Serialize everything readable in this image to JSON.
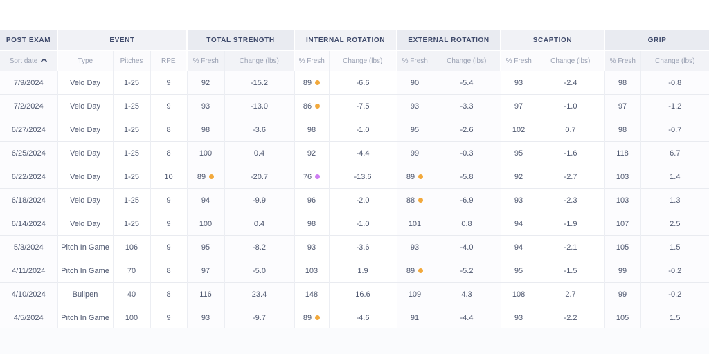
{
  "colors": {
    "dot_orange": "#F2A93C",
    "dot_purple": "#CE7EF2",
    "header_text": "#3F4A6B"
  },
  "table": {
    "sort": {
      "column": "Sort date",
      "direction": "ascending"
    },
    "groups": [
      {
        "label": "POST EXAM",
        "tone": "gray",
        "columns": [
          {
            "label": "Sort date"
          }
        ]
      },
      {
        "label": "EVENT",
        "tone": "light",
        "columns": [
          {
            "label": "Type"
          },
          {
            "label": "Pitches"
          },
          {
            "label": "RPE"
          }
        ]
      },
      {
        "label": "TOTAL STRENGTH",
        "tone": "gray",
        "columns": [
          {
            "label": "% Fresh"
          },
          {
            "label": "Change (lbs)"
          }
        ]
      },
      {
        "label": "INTERNAL ROTATION",
        "tone": "light",
        "columns": [
          {
            "label": "% Fresh"
          },
          {
            "label": "Change (lbs)"
          }
        ]
      },
      {
        "label": "EXTERNAL ROTATION",
        "tone": "gray",
        "columns": [
          {
            "label": "% Fresh"
          },
          {
            "label": "Change (lbs)"
          }
        ]
      },
      {
        "label": "SCAPTION",
        "tone": "light",
        "columns": [
          {
            "label": "% Fresh"
          },
          {
            "label": "Change (lbs)"
          }
        ]
      },
      {
        "label": "GRIP",
        "tone": "gray",
        "columns": [
          {
            "label": "% Fresh"
          },
          {
            "label": "Change (lbs)"
          }
        ]
      }
    ],
    "rows": [
      {
        "date": "7/9/2024",
        "type": "Velo Day",
        "pitches": "1-25",
        "rpe": "9",
        "total_strength": {
          "fresh": "92",
          "change": "-15.2",
          "dot": null
        },
        "internal_rotation": {
          "fresh": "89",
          "change": "-6.6",
          "dot": "orange"
        },
        "external_rotation": {
          "fresh": "90",
          "change": "-5.4",
          "dot": null
        },
        "scaption": {
          "fresh": "93",
          "change": "-2.4",
          "dot": null
        },
        "grip": {
          "fresh": "98",
          "change": "-0.8",
          "dot": null
        }
      },
      {
        "date": "7/2/2024",
        "type": "Velo Day",
        "pitches": "1-25",
        "rpe": "9",
        "total_strength": {
          "fresh": "93",
          "change": "-13.0",
          "dot": null
        },
        "internal_rotation": {
          "fresh": "86",
          "change": "-7.5",
          "dot": "orange"
        },
        "external_rotation": {
          "fresh": "93",
          "change": "-3.3",
          "dot": null
        },
        "scaption": {
          "fresh": "97",
          "change": "-1.0",
          "dot": null
        },
        "grip": {
          "fresh": "97",
          "change": "-1.2",
          "dot": null
        }
      },
      {
        "date": "6/27/2024",
        "type": "Velo Day",
        "pitches": "1-25",
        "rpe": "8",
        "total_strength": {
          "fresh": "98",
          "change": "-3.6",
          "dot": null
        },
        "internal_rotation": {
          "fresh": "98",
          "change": "-1.0",
          "dot": null
        },
        "external_rotation": {
          "fresh": "95",
          "change": "-2.6",
          "dot": null
        },
        "scaption": {
          "fresh": "102",
          "change": "0.7",
          "dot": null
        },
        "grip": {
          "fresh": "98",
          "change": "-0.7",
          "dot": null
        }
      },
      {
        "date": "6/25/2024",
        "type": "Velo Day",
        "pitches": "1-25",
        "rpe": "8",
        "total_strength": {
          "fresh": "100",
          "change": "0.4",
          "dot": null
        },
        "internal_rotation": {
          "fresh": "92",
          "change": "-4.4",
          "dot": null
        },
        "external_rotation": {
          "fresh": "99",
          "change": "-0.3",
          "dot": null
        },
        "scaption": {
          "fresh": "95",
          "change": "-1.6",
          "dot": null
        },
        "grip": {
          "fresh": "118",
          "change": "6.7",
          "dot": null
        }
      },
      {
        "date": "6/22/2024",
        "type": "Velo Day",
        "pitches": "1-25",
        "rpe": "10",
        "total_strength": {
          "fresh": "89",
          "change": "-20.7",
          "dot": "orange"
        },
        "internal_rotation": {
          "fresh": "76",
          "change": "-13.6",
          "dot": "purple"
        },
        "external_rotation": {
          "fresh": "89",
          "change": "-5.8",
          "dot": "orange"
        },
        "scaption": {
          "fresh": "92",
          "change": "-2.7",
          "dot": null
        },
        "grip": {
          "fresh": "103",
          "change": "1.4",
          "dot": null
        }
      },
      {
        "date": "6/18/2024",
        "type": "Velo Day",
        "pitches": "1-25",
        "rpe": "9",
        "total_strength": {
          "fresh": "94",
          "change": "-9.9",
          "dot": null
        },
        "internal_rotation": {
          "fresh": "96",
          "change": "-2.0",
          "dot": null
        },
        "external_rotation": {
          "fresh": "88",
          "change": "-6.9",
          "dot": "orange"
        },
        "scaption": {
          "fresh": "93",
          "change": "-2.3",
          "dot": null
        },
        "grip": {
          "fresh": "103",
          "change": "1.3",
          "dot": null
        }
      },
      {
        "date": "6/14/2024",
        "type": "Velo Day",
        "pitches": "1-25",
        "rpe": "9",
        "total_strength": {
          "fresh": "100",
          "change": "0.4",
          "dot": null
        },
        "internal_rotation": {
          "fresh": "98",
          "change": "-1.0",
          "dot": null
        },
        "external_rotation": {
          "fresh": "101",
          "change": "0.8",
          "dot": null
        },
        "scaption": {
          "fresh": "94",
          "change": "-1.9",
          "dot": null
        },
        "grip": {
          "fresh": "107",
          "change": "2.5",
          "dot": null
        }
      },
      {
        "date": "5/3/2024",
        "type": "Pitch In Game",
        "pitches": "106",
        "rpe": "9",
        "total_strength": {
          "fresh": "95",
          "change": "-8.2",
          "dot": null
        },
        "internal_rotation": {
          "fresh": "93",
          "change": "-3.6",
          "dot": null
        },
        "external_rotation": {
          "fresh": "93",
          "change": "-4.0",
          "dot": null
        },
        "scaption": {
          "fresh": "94",
          "change": "-2.1",
          "dot": null
        },
        "grip": {
          "fresh": "105",
          "change": "1.5",
          "dot": null
        }
      },
      {
        "date": "4/11/2024",
        "type": "Pitch In Game",
        "pitches": "70",
        "rpe": "8",
        "total_strength": {
          "fresh": "97",
          "change": "-5.0",
          "dot": null
        },
        "internal_rotation": {
          "fresh": "103",
          "change": "1.9",
          "dot": null
        },
        "external_rotation": {
          "fresh": "89",
          "change": "-5.2",
          "dot": "orange"
        },
        "scaption": {
          "fresh": "95",
          "change": "-1.5",
          "dot": null
        },
        "grip": {
          "fresh": "99",
          "change": "-0.2",
          "dot": null
        }
      },
      {
        "date": "4/10/2024",
        "type": "Bullpen",
        "pitches": "40",
        "rpe": "8",
        "total_strength": {
          "fresh": "116",
          "change": "23.4",
          "dot": null
        },
        "internal_rotation": {
          "fresh": "148",
          "change": "16.6",
          "dot": null
        },
        "external_rotation": {
          "fresh": "109",
          "change": "4.3",
          "dot": null
        },
        "scaption": {
          "fresh": "108",
          "change": "2.7",
          "dot": null
        },
        "grip": {
          "fresh": "99",
          "change": "-0.2",
          "dot": null
        }
      },
      {
        "date": "4/5/2024",
        "type": "Pitch In Game",
        "pitches": "100",
        "rpe": "9",
        "total_strength": {
          "fresh": "93",
          "change": "-9.7",
          "dot": null
        },
        "internal_rotation": {
          "fresh": "89",
          "change": "-4.6",
          "dot": "orange"
        },
        "external_rotation": {
          "fresh": "91",
          "change": "-4.4",
          "dot": null
        },
        "scaption": {
          "fresh": "93",
          "change": "-2.2",
          "dot": null
        },
        "grip": {
          "fresh": "105",
          "change": "1.5",
          "dot": null
        }
      }
    ]
  }
}
